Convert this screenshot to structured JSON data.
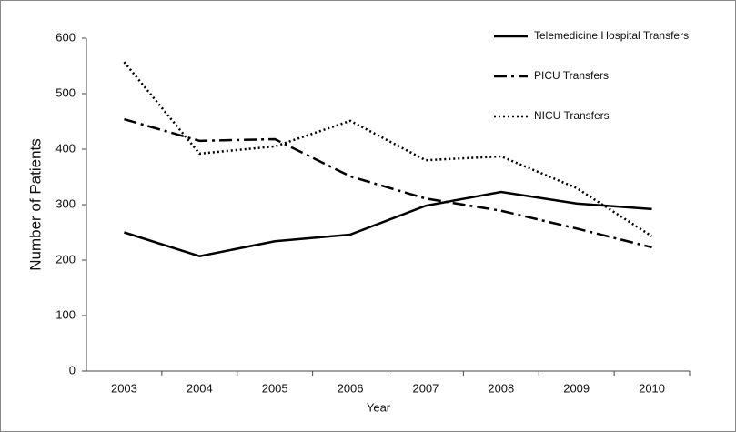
{
  "chart_data": {
    "type": "line",
    "x_label": "Year",
    "y_label": "Number of Patients",
    "categories": [
      "2003",
      "2004",
      "2005",
      "2006",
      "2007",
      "2008",
      "2009",
      "2010"
    ],
    "series": [
      {
        "name": "Telemedicine Hospital Transfers",
        "color": "#000000",
        "style": "solid",
        "values": [
          250,
          207,
          234,
          246,
          298,
          323,
          302,
          292
        ]
      },
      {
        "name": "PICU Transfers",
        "color": "#000000",
        "style": "dashdot",
        "values": [
          454,
          415,
          418,
          351,
          311,
          289,
          257,
          223
        ]
      },
      {
        "name": "NICU Transfers",
        "color": "#000000",
        "style": "dotted",
        "values": [
          557,
          392,
          405,
          451,
          380,
          387,
          330,
          243
        ]
      }
    ],
    "ylim": [
      0,
      600
    ],
    "yticks": [
      0,
      100,
      200,
      300,
      400,
      500,
      600
    ],
    "legend": "top-right"
  }
}
